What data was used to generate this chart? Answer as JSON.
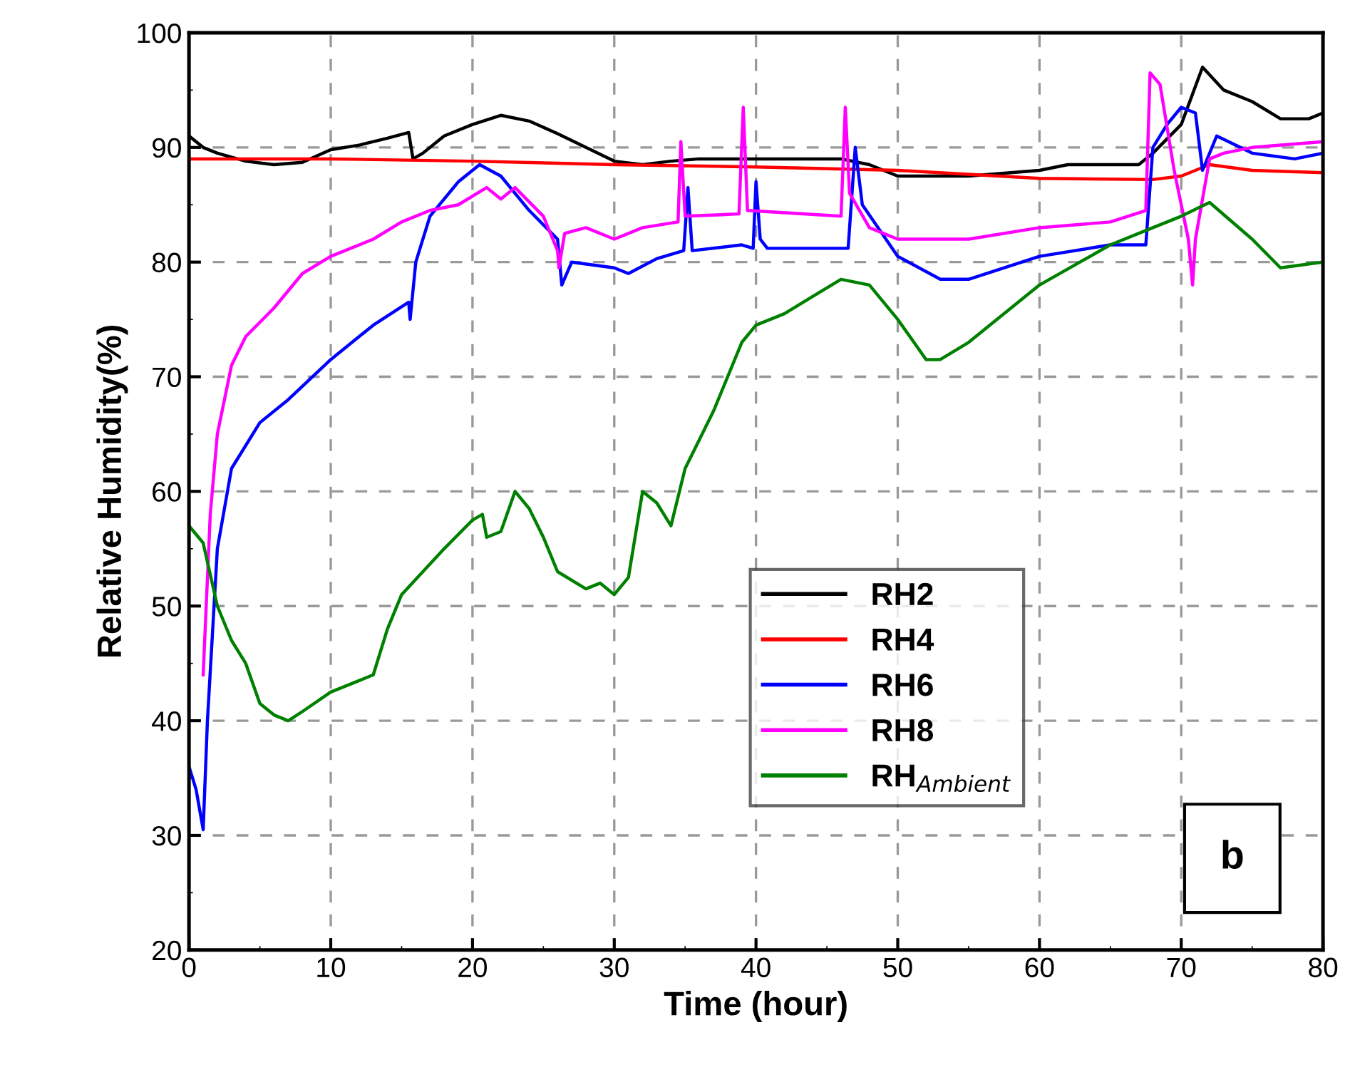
{
  "chart_data": {
    "type": "line",
    "xlabel": "Time (hour)",
    "ylabel": "Relative Humidity(%)",
    "xlim": [
      0,
      80
    ],
    "ylim": [
      20,
      100
    ],
    "xticks": [
      0,
      10,
      20,
      30,
      40,
      50,
      60,
      70,
      80
    ],
    "yticks": [
      20,
      30,
      40,
      50,
      60,
      70,
      80,
      90,
      100
    ],
    "grid": true,
    "legend": "bottom right",
    "line_style": "solid",
    "marker": "none",
    "annotations": [
      "b"
    ],
    "series": [
      {
        "name": "RH2",
        "color": "#000000",
        "x": [
          0,
          1,
          2,
          4,
          6,
          8,
          10,
          12,
          14,
          15.5,
          15.8,
          16.5,
          18,
          20,
          22,
          24,
          26,
          28,
          30,
          32,
          34,
          36,
          40,
          46,
          48,
          50,
          55,
          60,
          62,
          67,
          68,
          70,
          71.5,
          73,
          75,
          77,
          79,
          80
        ],
        "values": [
          91,
          90,
          89.5,
          88.8,
          88.5,
          88.7,
          89.8,
          90.2,
          90.8,
          91.3,
          89,
          89.5,
          91,
          92,
          92.8,
          92.3,
          91.2,
          90,
          88.8,
          88.5,
          88.8,
          89,
          89,
          89,
          88.5,
          87.5,
          87.5,
          88,
          88.5,
          88.5,
          89.5,
          92,
          97,
          95,
          94,
          92.5,
          92.5,
          93
        ]
      },
      {
        "name": "RH4",
        "color": "#ff0000",
        "x": [
          0,
          10,
          20,
          30,
          40,
          50,
          60,
          68,
          70,
          72,
          75,
          80
        ],
        "values": [
          89,
          89,
          88.8,
          88.5,
          88.3,
          88,
          87.3,
          87.2,
          87.5,
          88.5,
          88,
          87.8
        ]
      },
      {
        "name": "RH6",
        "color": "#0000ff",
        "x": [
          0,
          0.5,
          1,
          1.3,
          2,
          3,
          5,
          7,
          10,
          13,
          15.5,
          15.6,
          16,
          17,
          19,
          20.5,
          22,
          24,
          26,
          26.3,
          27,
          30,
          31,
          33,
          34.9,
          35.2,
          35.5,
          39,
          39.8,
          40,
          40.3,
          40.8,
          46.5,
          47,
          47.5,
          50,
          53,
          55,
          60,
          65,
          67.5,
          68,
          69,
          70,
          71,
          71.5,
          72.5,
          75,
          78,
          80
        ],
        "values": [
          36,
          34,
          30.5,
          40,
          55,
          62,
          66,
          68,
          71.5,
          74.5,
          76.5,
          75,
          80,
          84,
          87,
          88.5,
          87.5,
          84.5,
          82,
          78,
          80,
          79.5,
          79,
          80.3,
          81,
          86.5,
          81,
          81.5,
          81.2,
          87,
          82,
          81.2,
          81.2,
          90,
          85,
          80.5,
          78.5,
          78.5,
          80.5,
          81.5,
          81.5,
          90,
          92,
          93.5,
          93,
          88,
          91,
          89.5,
          89,
          89.5
        ]
      },
      {
        "name": "RH8",
        "color": "#ff00ff",
        "x": [
          1,
          1.5,
          2,
          3,
          4,
          6,
          8,
          10,
          13,
          15,
          17,
          19,
          21,
          22,
          23,
          25,
          26,
          26.1,
          26.5,
          28,
          30,
          32,
          34.5,
          34.7,
          35,
          38.8,
          39.1,
          39.4,
          46,
          46.3,
          46.6,
          48,
          50,
          55,
          60,
          65,
          67.5,
          67.8,
          68.5,
          69.5,
          70.5,
          70.8,
          71,
          72,
          73,
          75,
          78,
          80
        ],
        "values": [
          44,
          58,
          65,
          71,
          73.5,
          76,
          79,
          80.5,
          82,
          83.5,
          84.5,
          85,
          86.5,
          85.5,
          86.5,
          84,
          81,
          79.5,
          82.5,
          83,
          82,
          83,
          83.5,
          90.5,
          84,
          84.2,
          93.5,
          84.5,
          84,
          93.5,
          86,
          83,
          82,
          82,
          83,
          83.5,
          84.5,
          96.5,
          95.5,
          88,
          82,
          78,
          82,
          89,
          89.5,
          90,
          90.3,
          90.5
        ]
      },
      {
        "name": "RH$_{Ambient}$",
        "color": "#008000",
        "x": [
          0,
          1,
          2,
          3,
          4,
          5,
          6,
          7,
          8,
          10,
          12,
          13,
          14,
          15,
          18,
          20,
          20.7,
          21,
          22,
          23,
          24,
          25,
          26,
          28,
          29,
          30,
          31,
          32,
          33,
          34,
          35,
          37,
          39,
          40,
          42,
          44,
          46,
          48,
          50,
          52,
          53,
          55,
          60,
          65,
          68,
          70,
          72,
          75,
          77,
          80
        ],
        "values": [
          57,
          55.5,
          50,
          47,
          45,
          41.5,
          40.5,
          40,
          40.8,
          42.5,
          43.5,
          44,
          48,
          51,
          55,
          57.5,
          58,
          56,
          56.5,
          60,
          58.5,
          56,
          53,
          51.5,
          52,
          51,
          52.5,
          60,
          59,
          57,
          62,
          67,
          73,
          74.5,
          75.5,
          77,
          78.5,
          78,
          75,
          71.5,
          71.5,
          73,
          78,
          81.5,
          83,
          84,
          85.2,
          82,
          79.5,
          80
        ]
      }
    ]
  }
}
